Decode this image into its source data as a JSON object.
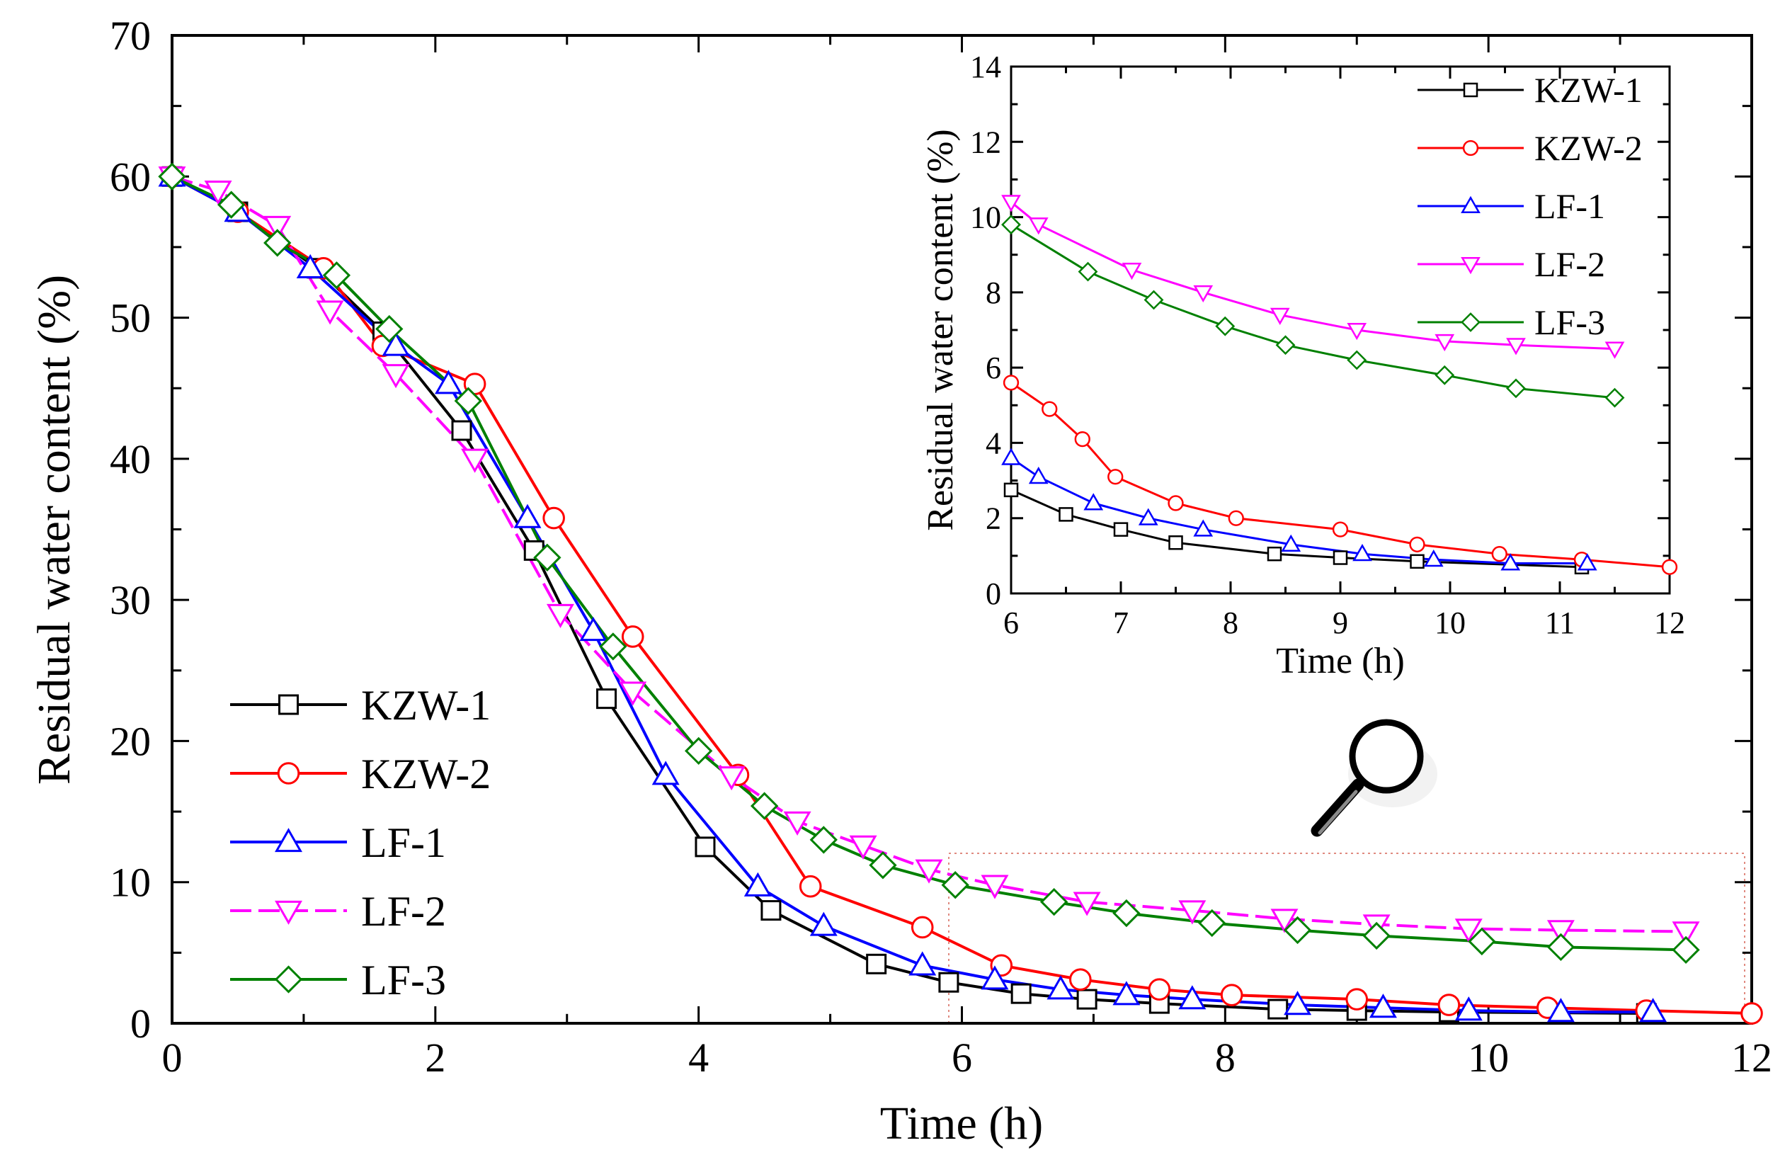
{
  "chart_data": [
    {
      "id": "main",
      "type": "line",
      "title": "",
      "xlabel": "Time (h)",
      "ylabel": "Residual water content (%)",
      "xlim": [
        0,
        12
      ],
      "ylim": [
        0,
        70
      ],
      "xticks": [
        0,
        2,
        4,
        6,
        8,
        10,
        12
      ],
      "yticks": [
        0,
        10,
        20,
        30,
        40,
        50,
        60,
        70
      ],
      "grid": false,
      "legend_position": "bottom-left",
      "series": [
        {
          "name": "KZW-1",
          "color": "#000000",
          "marker": "square",
          "dash": "solid",
          "x": [
            0,
            0.5,
            1.1,
            1.6,
            2.2,
            2.75,
            3.3,
            4.05,
            4.55,
            5.35,
            5.9,
            6.45,
            6.95,
            7.5,
            8.4,
            9.0,
            9.7,
            11.2
          ],
          "y": [
            60,
            57.5,
            53.5,
            49,
            42,
            33.5,
            23,
            12.5,
            8,
            4.2,
            2.9,
            2.1,
            1.7,
            1.4,
            1.0,
            0.9,
            0.8,
            0.7
          ]
        },
        {
          "name": "KZW-2",
          "color": "#ff0000",
          "marker": "circle",
          "dash": "solid",
          "x": [
            0,
            0.5,
            1.15,
            1.6,
            2.3,
            2.9,
            3.5,
            4.3,
            4.85,
            5.7,
            6.3,
            6.9,
            7.5,
            8.05,
            9.0,
            9.7,
            10.45,
            11.2,
            12.0
          ],
          "y": [
            60,
            57.5,
            53.5,
            48,
            45.3,
            35.8,
            27.4,
            17.6,
            9.7,
            6.8,
            4.1,
            3.1,
            2.4,
            2.0,
            1.7,
            1.3,
            1.1,
            0.9,
            0.7
          ]
        },
        {
          "name": "LF-1",
          "color": "#0000ff",
          "marker": "triangle-up",
          "dash": "solid",
          "x": [
            0,
            0.5,
            1.05,
            1.7,
            2.1,
            2.7,
            3.2,
            3.75,
            4.45,
            4.95,
            5.7,
            6.25,
            6.75,
            7.25,
            7.75,
            8.55,
            9.2,
            9.85,
            10.55,
            11.25
          ],
          "y": [
            60,
            57.5,
            53.5,
            48,
            45.3,
            35.8,
            27.8,
            17.6,
            9.7,
            6.9,
            4.1,
            3.1,
            2.4,
            2.0,
            1.7,
            1.3,
            1.1,
            0.9,
            0.8,
            0.8
          ]
        },
        {
          "name": "LF-2",
          "color": "#ff00ff",
          "marker": "triangle-down",
          "dash": "dashed",
          "x": [
            0,
            0.35,
            0.8,
            1.2,
            1.7,
            2.3,
            2.95,
            3.5,
            4.25,
            4.75,
            5.25,
            5.75,
            6.25,
            6.95,
            7.75,
            8.45,
            9.15,
            9.85,
            10.55,
            11.5
          ],
          "y": [
            60,
            59,
            56.5,
            50.5,
            46,
            40,
            29,
            23.5,
            17.5,
            14.3,
            12.6,
            10.9,
            9.8,
            8.6,
            8.0,
            7.4,
            7.0,
            6.7,
            6.6,
            6.5
          ]
        },
        {
          "name": "LF-3",
          "color": "#008000",
          "marker": "diamond",
          "dash": "solid",
          "x": [
            0,
            0.45,
            0.8,
            1.25,
            1.65,
            2.25,
            2.85,
            3.35,
            4.0,
            4.5,
            4.95,
            5.4,
            5.95,
            6.7,
            7.25,
            7.9,
            8.55,
            9.15,
            9.95,
            10.55,
            11.5
          ],
          "y": [
            60,
            58,
            55.3,
            53,
            49.2,
            44.1,
            33,
            26.7,
            19.3,
            15.4,
            13,
            11.2,
            9.8,
            8.6,
            7.8,
            7.1,
            6.6,
            6.2,
            5.8,
            5.4,
            5.2
          ]
        }
      ]
    },
    {
      "id": "inset",
      "type": "line",
      "title": "",
      "xlabel": "Time (h)",
      "ylabel": "Residual water content (%)",
      "xlim": [
        6,
        12
      ],
      "ylim": [
        0,
        14
      ],
      "xticks": [
        6,
        7,
        8,
        9,
        10,
        11,
        12
      ],
      "yticks": [
        0,
        2,
        4,
        6,
        8,
        10,
        12,
        14
      ],
      "grid": false,
      "legend_position": "top-right",
      "series": [
        {
          "name": "KZW-1",
          "color": "#000000",
          "marker": "square",
          "dash": "solid",
          "x": [
            6.0,
            6.5,
            7.0,
            7.5,
            8.4,
            9.0,
            9.7,
            11.2
          ],
          "y": [
            2.75,
            2.1,
            1.7,
            1.35,
            1.05,
            0.95,
            0.85,
            0.7
          ]
        },
        {
          "name": "KZW-2",
          "color": "#ff0000",
          "marker": "circle",
          "dash": "solid",
          "x": [
            6.0,
            6.35,
            6.65,
            6.95,
            7.5,
            8.05,
            9.0,
            9.7,
            10.45,
            11.2,
            12.0
          ],
          "y": [
            5.6,
            4.9,
            4.1,
            3.1,
            2.4,
            2.0,
            1.7,
            1.3,
            1.05,
            0.9,
            0.7
          ]
        },
        {
          "name": "LF-1",
          "color": "#0000ff",
          "marker": "triangle-up",
          "dash": "solid",
          "x": [
            6.0,
            6.25,
            6.75,
            7.25,
            7.75,
            8.55,
            9.2,
            9.85,
            10.55,
            11.25
          ],
          "y": [
            3.6,
            3.1,
            2.4,
            2.0,
            1.7,
            1.3,
            1.05,
            0.9,
            0.8,
            0.8
          ]
        },
        {
          "name": "LF-2",
          "color": "#ff00ff",
          "marker": "triangle-down",
          "dash": "solid",
          "x": [
            6.0,
            6.25,
            7.1,
            7.75,
            8.45,
            9.15,
            9.95,
            10.6,
            11.5
          ],
          "y": [
            10.4,
            9.8,
            8.6,
            8.0,
            7.4,
            7.0,
            6.7,
            6.6,
            6.5
          ]
        },
        {
          "name": "LF-3",
          "color": "#008000",
          "marker": "diamond",
          "dash": "solid",
          "x": [
            6.0,
            6.7,
            7.3,
            7.95,
            8.5,
            9.15,
            9.95,
            10.6,
            11.5
          ],
          "y": [
            9.8,
            8.55,
            7.8,
            7.1,
            6.6,
            6.2,
            5.8,
            5.45,
            5.2
          ]
        }
      ]
    }
  ]
}
